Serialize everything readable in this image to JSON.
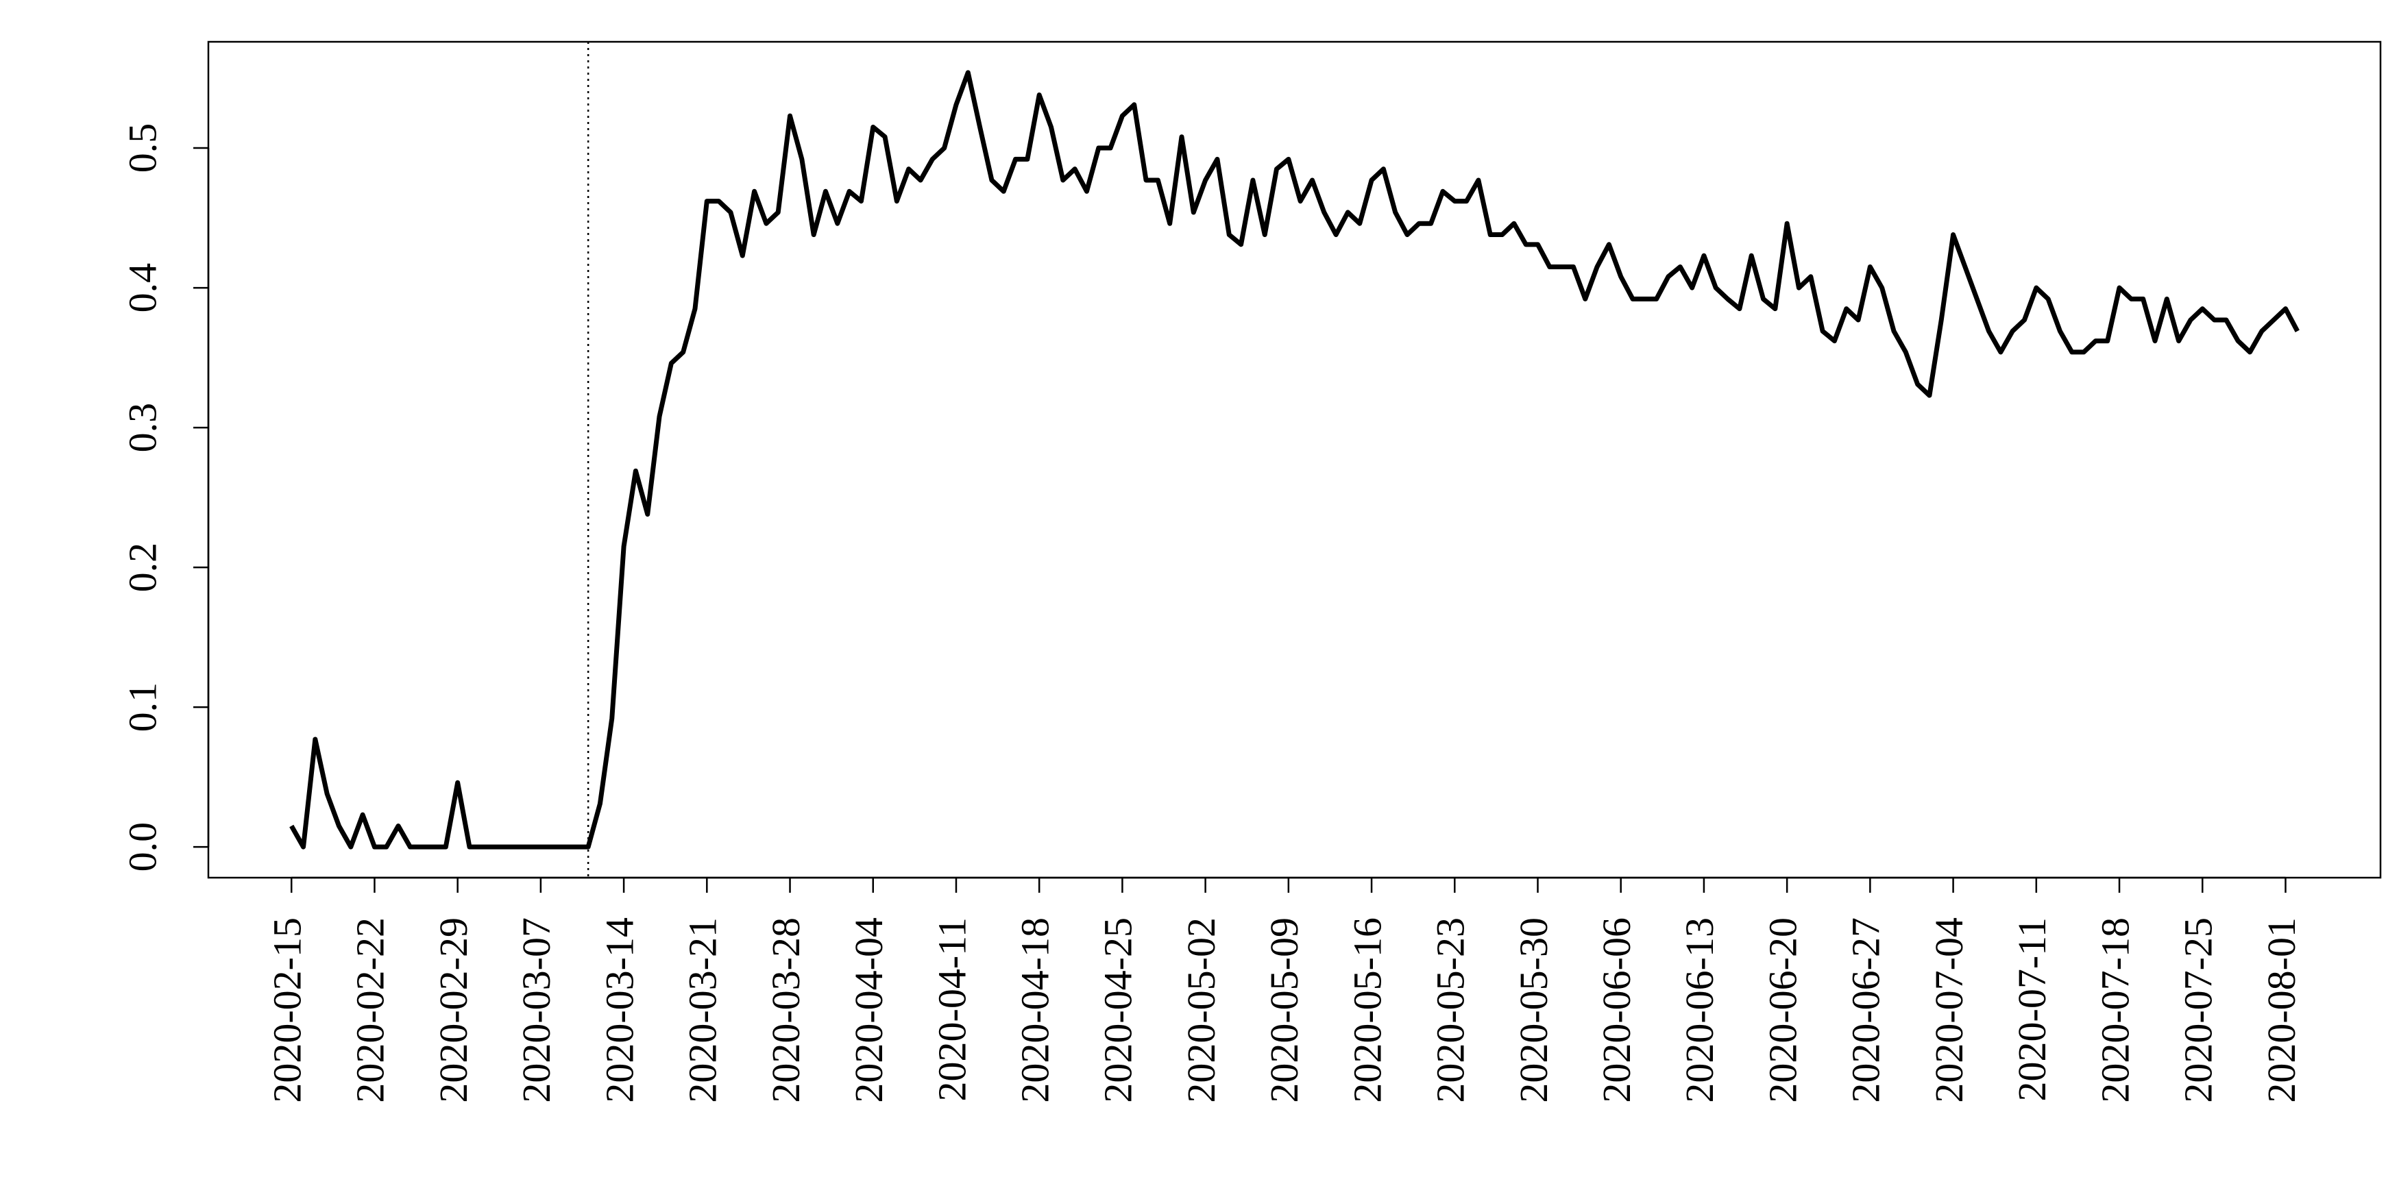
{
  "chart_data": {
    "type": "line",
    "x": [
      "2020-02-15",
      "2020-02-16",
      "2020-02-17",
      "2020-02-18",
      "2020-02-19",
      "2020-02-20",
      "2020-02-21",
      "2020-02-22",
      "2020-02-23",
      "2020-02-24",
      "2020-02-25",
      "2020-02-26",
      "2020-02-27",
      "2020-02-28",
      "2020-02-29",
      "2020-03-01",
      "2020-03-02",
      "2020-03-03",
      "2020-03-04",
      "2020-03-05",
      "2020-03-06",
      "2020-03-07",
      "2020-03-08",
      "2020-03-09",
      "2020-03-10",
      "2020-03-11",
      "2020-03-12",
      "2020-03-13",
      "2020-03-14",
      "2020-03-15",
      "2020-03-16",
      "2020-03-17",
      "2020-03-18",
      "2020-03-19",
      "2020-03-20",
      "2020-03-21",
      "2020-03-22",
      "2020-03-23",
      "2020-03-24",
      "2020-03-25",
      "2020-03-26",
      "2020-03-27",
      "2020-03-28",
      "2020-03-29",
      "2020-03-30",
      "2020-03-31",
      "2020-04-01",
      "2020-04-02",
      "2020-04-03",
      "2020-04-04",
      "2020-04-05",
      "2020-04-06",
      "2020-04-07",
      "2020-04-08",
      "2020-04-09",
      "2020-04-10",
      "2020-04-11",
      "2020-04-12",
      "2020-04-13",
      "2020-04-14",
      "2020-04-15",
      "2020-04-16",
      "2020-04-17",
      "2020-04-18",
      "2020-04-19",
      "2020-04-20",
      "2020-04-21",
      "2020-04-22",
      "2020-04-23",
      "2020-04-24",
      "2020-04-25",
      "2020-04-26",
      "2020-04-27",
      "2020-04-28",
      "2020-04-29",
      "2020-04-30",
      "2020-05-01",
      "2020-05-02",
      "2020-05-03",
      "2020-05-04",
      "2020-05-05",
      "2020-05-06",
      "2020-05-07",
      "2020-05-08",
      "2020-05-09",
      "2020-05-10",
      "2020-05-11",
      "2020-05-12",
      "2020-05-13",
      "2020-05-14",
      "2020-05-15",
      "2020-05-16",
      "2020-05-17",
      "2020-05-18",
      "2020-05-19",
      "2020-05-20",
      "2020-05-21",
      "2020-05-22",
      "2020-05-23",
      "2020-05-24",
      "2020-05-25",
      "2020-05-26",
      "2020-05-27",
      "2020-05-28",
      "2020-05-29",
      "2020-05-30",
      "2020-05-31",
      "2020-06-01",
      "2020-06-02",
      "2020-06-03",
      "2020-06-04",
      "2020-06-05",
      "2020-06-06",
      "2020-06-07",
      "2020-06-08",
      "2020-06-09",
      "2020-06-10",
      "2020-06-11",
      "2020-06-12",
      "2020-06-13",
      "2020-06-14",
      "2020-06-15",
      "2020-06-16",
      "2020-06-17",
      "2020-06-18",
      "2020-06-19",
      "2020-06-20",
      "2020-06-21",
      "2020-06-22",
      "2020-06-23",
      "2020-06-24",
      "2020-06-25",
      "2020-06-26",
      "2020-06-27",
      "2020-06-28",
      "2020-06-29",
      "2020-06-30",
      "2020-07-01",
      "2020-07-02",
      "2020-07-03",
      "2020-07-04",
      "2020-07-05",
      "2020-07-06",
      "2020-07-07",
      "2020-07-08",
      "2020-07-09",
      "2020-07-10",
      "2020-07-11",
      "2020-07-12",
      "2020-07-13",
      "2020-07-14",
      "2020-07-15",
      "2020-07-16",
      "2020-07-17",
      "2020-07-18",
      "2020-07-19",
      "2020-07-20",
      "2020-07-21",
      "2020-07-22",
      "2020-07-23",
      "2020-07-24",
      "2020-07-25",
      "2020-07-26",
      "2020-07-27",
      "2020-07-28",
      "2020-07-29",
      "2020-07-30",
      "2020-07-31",
      "2020-08-01",
      "2020-08-02"
    ],
    "values": [
      0.015,
      0,
      0.077,
      0.038,
      0.015,
      0,
      0.023,
      0,
      0,
      0.015,
      0,
      0,
      0,
      0,
      0.046,
      0,
      0,
      0,
      0,
      0,
      0,
      0,
      0,
      0,
      0,
      0,
      0.031,
      0.092,
      0.215,
      0.269,
      0.238,
      0.308,
      0.346,
      0.354,
      0.385,
      0.462,
      0.462,
      0.454,
      0.423,
      0.469,
      0.446,
      0.454,
      0.523,
      0.492,
      0.438,
      0.469,
      0.446,
      0.469,
      0.462,
      0.515,
      0.508,
      0.462,
      0.485,
      0.477,
      0.492,
      0.5,
      0.531,
      0.554,
      0.515,
      0.477,
      0.469,
      0.492,
      0.492,
      0.538,
      0.515,
      0.477,
      0.485,
      0.469,
      0.5,
      0.5,
      0.523,
      0.531,
      0.477,
      0.477,
      0.446,
      0.508,
      0.454,
      0.477,
      0.492,
      0.438,
      0.431,
      0.477,
      0.438,
      0.485,
      0.492,
      0.462,
      0.477,
      0.454,
      0.438,
      0.454,
      0.446,
      0.477,
      0.485,
      0.454,
      0.438,
      0.446,
      0.446,
      0.469,
      0.462,
      0.462,
      0.477,
      0.438,
      0.438,
      0.446,
      0.431,
      0.431,
      0.415,
      0.415,
      0.415,
      0.392,
      0.415,
      0.431,
      0.408,
      0.392,
      0.392,
      0.392,
      0.408,
      0.415,
      0.4,
      0.423,
      0.4,
      0.392,
      0.385,
      0.423,
      0.392,
      0.385,
      0.446,
      0.4,
      0.408,
      0.369,
      0.362,
      0.385,
      0.377,
      0.415,
      0.4,
      0.369,
      0.354,
      0.331,
      0.323,
      0.377,
      0.438,
      0.415,
      0.392,
      0.369,
      0.354,
      0.369,
      0.377,
      0.4,
      0.392,
      0.369,
      0.354,
      0.354,
      0.362,
      0.362,
      0.4,
      0.392,
      0.392,
      0.362,
      0.392,
      0.362,
      0.377,
      0.385,
      0.377,
      0.377,
      0.362,
      0.354,
      0.369,
      0.377,
      0.385,
      0.369
    ],
    "color": "#000000",
    "xlim": [
      "2020-02-08",
      "2020-08-09"
    ],
    "xticks": [
      "2020-02-15",
      "2020-02-22",
      "2020-02-29",
      "2020-03-07",
      "2020-03-14",
      "2020-03-21",
      "2020-03-28",
      "2020-04-04",
      "2020-04-11",
      "2020-04-18",
      "2020-04-25",
      "2020-05-02",
      "2020-05-09",
      "2020-05-16",
      "2020-05-23",
      "2020-05-30",
      "2020-06-06",
      "2020-06-13",
      "2020-06-20",
      "2020-06-27",
      "2020-07-04",
      "2020-07-11",
      "2020-07-18",
      "2020-07-25",
      "2020-08-01"
    ],
    "ylim": [
      -0.022,
      0.576
    ],
    "yticks": [
      {
        "value": 0,
        "label": "0.0"
      },
      0.1,
      0.2,
      0.3,
      0.4,
      0.5
    ],
    "vline_x": "2020-03-11",
    "grid": false
  }
}
